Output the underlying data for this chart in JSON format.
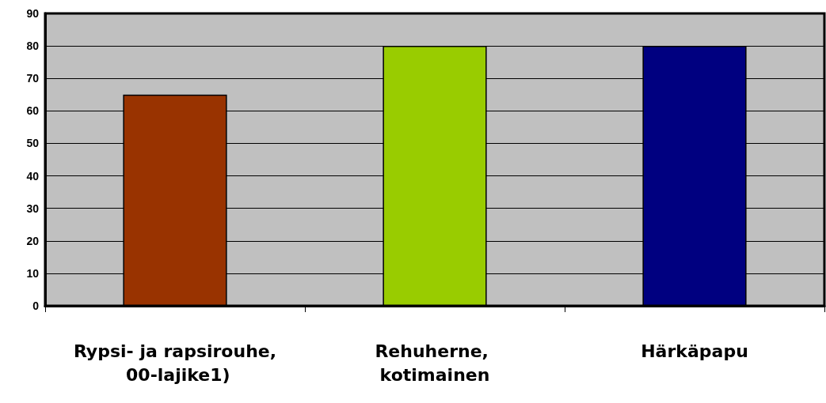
{
  "chart_data": {
    "type": "bar",
    "categories": [
      "Rypsi- ja rapsirouhe, 00-lajike1)",
      "Rehuherne, kotimainen",
      "Härkäpapu"
    ],
    "values": [
      65,
      80,
      80
    ],
    "colors": [
      "#993300",
      "#99cc00",
      "#000080"
    ],
    "ylim": [
      0,
      90
    ],
    "yticks": [
      0,
      10,
      20,
      30,
      40,
      50,
      60,
      70,
      80,
      90
    ],
    "grid": "y"
  }
}
